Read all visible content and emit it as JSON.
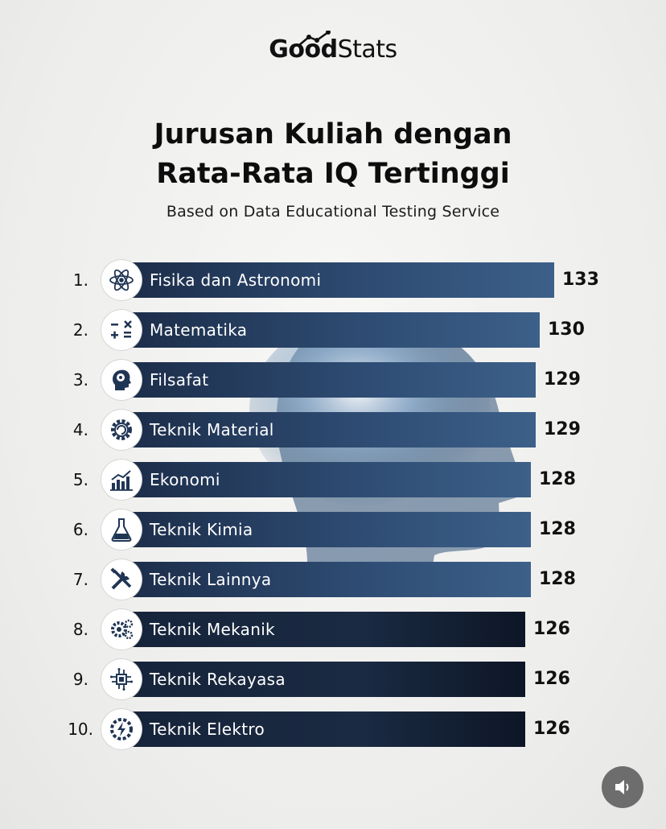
{
  "logo": {
    "bold": "Good",
    "light": "Stats"
  },
  "title_line1": "Jurusan Kuliah dengan",
  "title_line2": "Rata-Rata IQ Tertinggi",
  "subtitle": "Based on Data Educational  Testing  Service",
  "chart_data": {
    "type": "bar",
    "orientation": "horizontal",
    "title": "Jurusan Kuliah dengan Rata-Rata IQ Tertinggi",
    "subtitle": "Based on Data Educational  Testing  Service",
    "ranks": [
      "1.",
      "2.",
      "3.",
      "4.",
      "5.",
      "6.",
      "7.",
      "8.",
      "9.",
      "10."
    ],
    "categories": [
      "Fisika dan Astronomi",
      "Matematika",
      "Filsafat",
      "Teknik Material",
      "Ekonomi",
      "Teknik Kimia",
      "Teknik Lainnya",
      "Teknik Mekanik",
      "Teknik Rekayasa",
      "Teknik Elektro"
    ],
    "values": [
      133,
      130,
      129,
      129,
      128,
      128,
      128,
      126,
      126,
      126
    ],
    "icons": [
      "atom-icon",
      "math-symbols-icon",
      "brain-head-icon",
      "gear-icon",
      "growth-chart-icon",
      "flask-icon",
      "tools-icon",
      "gears-icon",
      "circuit-chip-icon",
      "lightning-gear-icon"
    ],
    "bar_color": "#2c4a70"
  },
  "audio_button": {
    "icon": "speaker-icon"
  }
}
